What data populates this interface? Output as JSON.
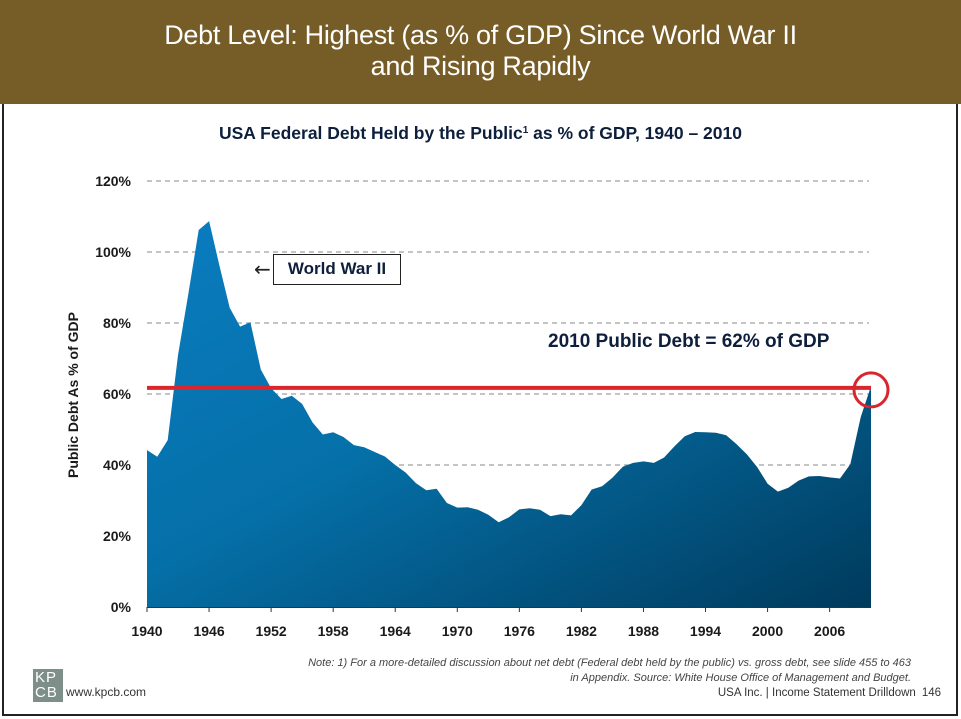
{
  "header": {
    "title_line1": "Debt Level: Highest (as % of GDP) Since World War II",
    "title_line2": "and Rising Rapidly",
    "background_color": "#765c26"
  },
  "chart_data": {
    "type": "area",
    "title": "USA Federal Debt Held by the Public",
    "title_superscript": "1",
    "title_suffix": " as % of GDP, 1940 – 2010",
    "xlabel": "",
    "ylabel": "Public Debt As % of GDP",
    "xlim": [
      1940,
      2010
    ],
    "ylim": [
      0,
      120
    ],
    "grid": true,
    "legend": "none",
    "x_ticks": [
      "1940",
      "1946",
      "1952",
      "1958",
      "1964",
      "1970",
      "1976",
      "1982",
      "1988",
      "1994",
      "2000",
      "2006"
    ],
    "y_ticks": [
      "0%",
      "20%",
      "40%",
      "60%",
      "80%",
      "100%",
      "120%"
    ],
    "y_tick_values": [
      0,
      20,
      40,
      60,
      80,
      100,
      120
    ],
    "x": [
      1940,
      1941,
      1942,
      1943,
      1944,
      1945,
      1946,
      1947,
      1948,
      1949,
      1950,
      1951,
      1952,
      1953,
      1954,
      1955,
      1956,
      1957,
      1958,
      1959,
      1960,
      1961,
      1962,
      1963,
      1964,
      1965,
      1966,
      1967,
      1968,
      1969,
      1970,
      1971,
      1972,
      1973,
      1974,
      1975,
      1976,
      1977,
      1978,
      1979,
      1980,
      1981,
      1982,
      1983,
      1984,
      1985,
      1986,
      1987,
      1988,
      1989,
      1990,
      1991,
      1992,
      1993,
      1994,
      1995,
      1996,
      1997,
      1998,
      1999,
      2000,
      2001,
      2002,
      2003,
      2004,
      2005,
      2006,
      2007,
      2008,
      2009,
      2010
    ],
    "series": [
      {
        "name": "Federal Debt Held by the Public (% of GDP)",
        "color_top": "#0a7cc0",
        "color_bottom": "#003a5c",
        "values": [
          44.2,
          42.3,
          47.0,
          70.9,
          88.3,
          106.2,
          108.7,
          96.2,
          84.3,
          79.0,
          80.2,
          66.9,
          61.6,
          58.6,
          59.5,
          57.2,
          52.0,
          48.6,
          49.2,
          47.9,
          45.6,
          45.0,
          43.7,
          42.4,
          40.0,
          37.9,
          34.9,
          32.9,
          33.3,
          29.3,
          28.0,
          28.1,
          27.4,
          26.0,
          23.9,
          25.3,
          27.5,
          27.8,
          27.4,
          25.6,
          26.1,
          25.8,
          28.7,
          33.1,
          34.0,
          36.4,
          39.5,
          40.6,
          41.0,
          40.6,
          42.1,
          45.3,
          48.1,
          49.3,
          49.2,
          49.1,
          48.4,
          45.9,
          43.0,
          39.4,
          34.7,
          32.5,
          33.6,
          35.6,
          36.8,
          36.9,
          36.5,
          36.2,
          40.2,
          53.5,
          62.2
        ]
      }
    ],
    "reference_line": {
      "value": 62,
      "color": "#d9262c",
      "label": "2010 Public Debt = 62% of GDP"
    },
    "annotations": [
      {
        "text": "World War II",
        "points_to": "1946 peak",
        "style": "boxed-with-left-arrow"
      },
      {
        "text": "2010 Public Debt = 62% of GDP",
        "style": "bold-callout"
      },
      {
        "text": "",
        "style": "red-circle",
        "x": 2010,
        "y": 62
      }
    ]
  },
  "annotations": {
    "ww2_label": "World War II",
    "ww2_arrow": "←",
    "debt_callout": "2010 Public Debt = 62% of GDP"
  },
  "footer": {
    "note_line1": "Note: 1) For a more-detailed discussion about net debt (Federal debt held by the public) vs. gross debt, see slide 455 to 463",
    "note_line2": "in Appendix. Source: White House Office of Management and Budget.",
    "section": "USA Inc. | Income Statement Drilldown",
    "page_number": "146",
    "logo_line1": "KP",
    "logo_line2": "CB",
    "website": "www.kpcb.com"
  }
}
